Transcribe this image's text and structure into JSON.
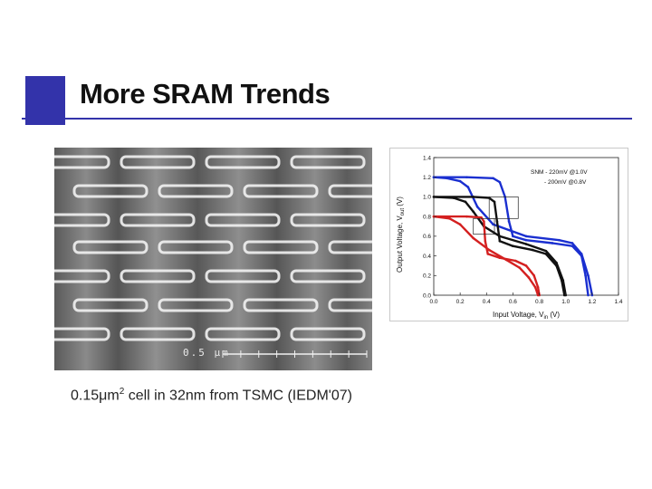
{
  "slide": {
    "title": "More SRAM Trends",
    "accent_color": "#3333aa"
  },
  "sem_image": {
    "scale_label": "0.5 μm"
  },
  "caption": {
    "prefix": "0.15",
    "unit_base": "μm",
    "unit_exp": "2",
    "rest": " cell in 32nm from TSMC (IEDM'07)"
  },
  "chart_data": {
    "type": "line",
    "xlabel": "Input Voltage, V",
    "xlabel_sub": "in",
    "xlabel_unit": " (V)",
    "ylabel": "Output Voltage, V",
    "ylabel_sub": "out",
    "ylabel_unit": " (V)",
    "xlim": [
      0.0,
      1.4
    ],
    "ylim": [
      0.0,
      1.4
    ],
    "xticks": [
      "0.0",
      "0.2",
      "0.4",
      "0.6",
      "0.8",
      "1.0",
      "1.2",
      "1.4"
    ],
    "yticks": [
      "0.0",
      "0.2",
      "0.4",
      "0.6",
      "0.8",
      "1.0",
      "1.2",
      "1.4"
    ],
    "annotations": [
      "SNM - 220mV @1.0V",
      "- 200mV @0.8V"
    ],
    "series": [
      {
        "color": "#1a2fd0",
        "vdd": 1.2,
        "values": [
          [
            0.0,
            1.2
          ],
          [
            0.25,
            1.2
          ],
          [
            0.45,
            1.19
          ],
          [
            0.5,
            1.15
          ],
          [
            0.54,
            1.0
          ],
          [
            0.57,
            0.75
          ],
          [
            0.6,
            0.6
          ],
          [
            0.7,
            0.56
          ],
          [
            0.9,
            0.53
          ],
          [
            1.05,
            0.5
          ],
          [
            1.12,
            0.4
          ],
          [
            1.15,
            0.2
          ],
          [
            1.17,
            0.0
          ]
        ]
      },
      {
        "color": "#1a2fd0",
        "vdd": 1.2,
        "values": [
          [
            0.0,
            1.2
          ],
          [
            0.1,
            1.19
          ],
          [
            0.2,
            1.16
          ],
          [
            0.26,
            1.1
          ],
          [
            0.33,
            0.9
          ],
          [
            0.45,
            0.72
          ],
          [
            0.7,
            0.6
          ],
          [
            0.95,
            0.56
          ],
          [
            1.05,
            0.53
          ],
          [
            1.12,
            0.42
          ],
          [
            1.17,
            0.2
          ],
          [
            1.2,
            0.0
          ]
        ]
      },
      {
        "color": "#111111",
        "vdd": 1.0,
        "values": [
          [
            0.0,
            1.0
          ],
          [
            0.3,
            1.0
          ],
          [
            0.42,
            0.99
          ],
          [
            0.46,
            0.95
          ],
          [
            0.48,
            0.75
          ],
          [
            0.5,
            0.55
          ],
          [
            0.6,
            0.5
          ],
          [
            0.75,
            0.46
          ],
          [
            0.85,
            0.42
          ],
          [
            0.93,
            0.3
          ],
          [
            0.97,
            0.15
          ],
          [
            0.99,
            0.0
          ]
        ]
      },
      {
        "color": "#111111",
        "vdd": 1.0,
        "values": [
          [
            0.0,
            1.0
          ],
          [
            0.15,
            0.99
          ],
          [
            0.24,
            0.95
          ],
          [
            0.3,
            0.85
          ],
          [
            0.38,
            0.7
          ],
          [
            0.5,
            0.6
          ],
          [
            0.7,
            0.52
          ],
          [
            0.85,
            0.45
          ],
          [
            0.93,
            0.33
          ],
          [
            0.98,
            0.15
          ],
          [
            1.0,
            0.0
          ]
        ]
      },
      {
        "color": "#d42020",
        "vdd": 0.8,
        "values": [
          [
            0.0,
            0.8
          ],
          [
            0.25,
            0.8
          ],
          [
            0.36,
            0.79
          ],
          [
            0.38,
            0.75
          ],
          [
            0.39,
            0.55
          ],
          [
            0.41,
            0.42
          ],
          [
            0.5,
            0.38
          ],
          [
            0.62,
            0.35
          ],
          [
            0.7,
            0.3
          ],
          [
            0.76,
            0.2
          ],
          [
            0.79,
            0.08
          ],
          [
            0.8,
            0.0
          ]
        ]
      },
      {
        "color": "#d42020",
        "vdd": 0.8,
        "values": [
          [
            0.0,
            0.8
          ],
          [
            0.12,
            0.78
          ],
          [
            0.2,
            0.72
          ],
          [
            0.3,
            0.58
          ],
          [
            0.42,
            0.46
          ],
          [
            0.55,
            0.36
          ],
          [
            0.65,
            0.28
          ],
          [
            0.72,
            0.18
          ],
          [
            0.77,
            0.08
          ],
          [
            0.79,
            0.0
          ]
        ]
      }
    ]
  }
}
